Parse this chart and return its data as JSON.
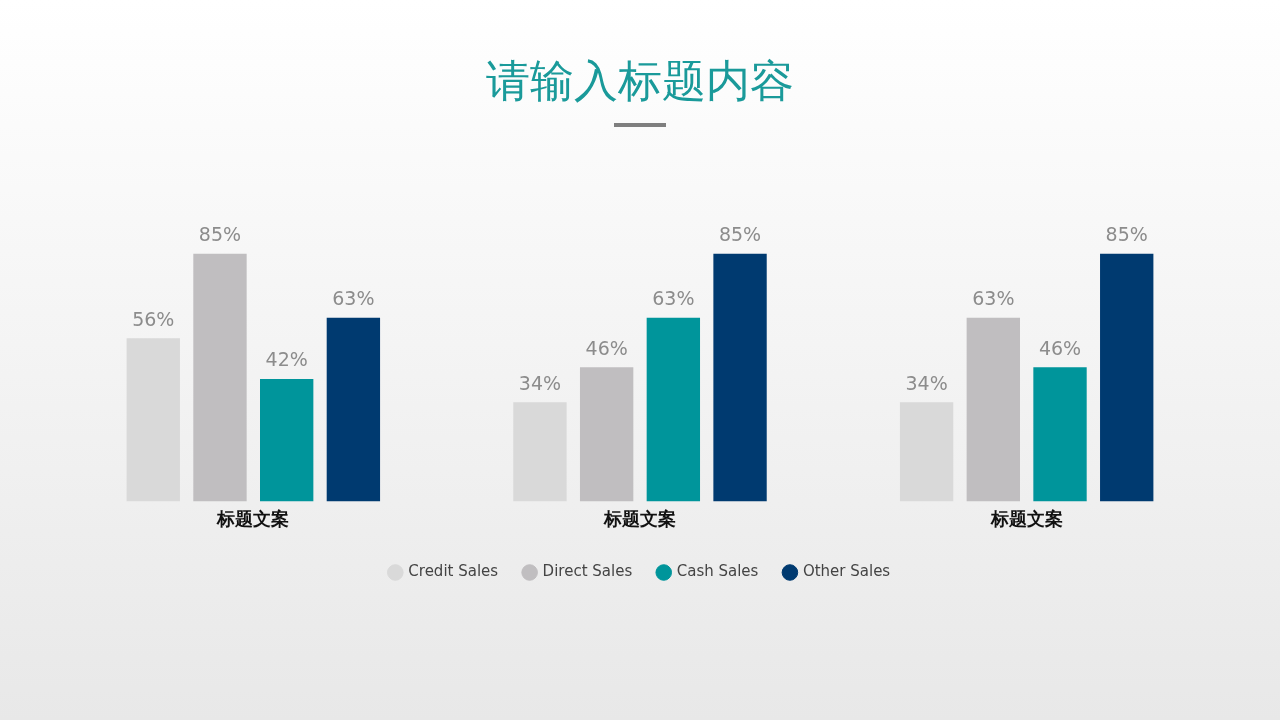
{
  "chart_data": {
    "type": "bar",
    "title": "请输入标题内容",
    "categories": [
      "标题文案",
      "标题文案",
      "标题文案"
    ],
    "series": [
      {
        "name": "Credit Sales",
        "color": "#d9d9d9",
        "values": [
          56,
          34,
          34
        ],
        "value_labels": [
          "56%",
          "34%",
          "34%"
        ]
      },
      {
        "name": "Direct Sales",
        "color": "#c0bec0",
        "values": [
          85,
          46,
          63
        ],
        "value_labels": [
          "85%",
          "46%",
          "63%"
        ]
      },
      {
        "name": "Cash Sales",
        "color": "#00959b",
        "values": [
          42,
          63,
          46
        ],
        "value_labels": [
          "42%",
          "63%",
          "46%"
        ]
      },
      {
        "name": "Other Sales",
        "color": "#003a70",
        "values": [
          63,
          85,
          85
        ],
        "value_labels": [
          "63%",
          "85%",
          "85%"
        ]
      }
    ],
    "legend": "bottom",
    "grid": false,
    "tick_labels": "x"
  }
}
